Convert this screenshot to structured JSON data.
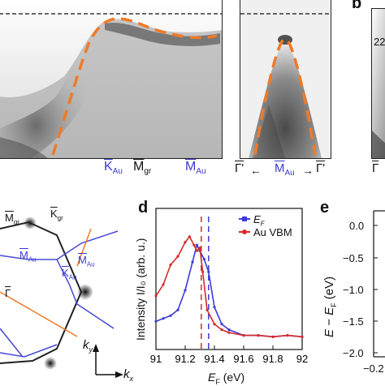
{
  "colors": {
    "fit_curve": "#f07a28",
    "blue": "#3b3bd6",
    "red": "#d62a2a",
    "bz_line": "#4848d8",
    "orange_line": "#f07a28"
  },
  "panel_a": {
    "axis_labels": [
      {
        "sym": "K",
        "sub": "Au",
        "color": "blue"
      },
      {
        "sym": "M",
        "sub": "gr",
        "color": "black"
      },
      {
        "sym": "M",
        "sub": "Au",
        "color": "blue"
      }
    ]
  },
  "panel_a2": {
    "left": "Γ'",
    "mid_sym": "M",
    "mid_sub": "Au",
    "right": "Γ'"
  },
  "panel_b": {
    "label": "b",
    "tick": "22",
    "bottom": "Γ"
  },
  "panel_c": {
    "labels": {
      "m_gr": "M",
      "m_gr_sub": "gr",
      "k_gr": "K",
      "k_gr_sub": "gr",
      "m_au_left": "M",
      "m_au_left_sub": "Au",
      "m_au_right": "M",
      "m_au_right_sub": "Au",
      "k_au": "K",
      "k_au_sub": "Au",
      "gamma": "Γ",
      "ky": "k",
      "ky_sub": "y",
      "kx": "k",
      "kx_sub": "x"
    }
  },
  "panel_d": {
    "label": "d",
    "legend": [
      {
        "name": "E",
        "sub": "F",
        "color": "blue"
      },
      {
        "name": "Au VBM",
        "color": "red"
      }
    ],
    "ylabel": "Intensity I/I₀ (arb. u.)",
    "xlabel_main": "E",
    "xlabel_sub": "F",
    "xlabel_unit": " (eV)",
    "x_ticks": [
      "91",
      "91.2",
      "91.4",
      "91.6",
      "91.8",
      "92"
    ]
  },
  "panel_e": {
    "label": "e",
    "ylabel": "E − E",
    "ylabel_sub": "F",
    "ylabel_unit": " (eV)",
    "y_ticks": [
      "0.0",
      "−0.5",
      "−1.0",
      "−1.5",
      "−2.0"
    ],
    "x_tick": "−0.2"
  },
  "chart_data": {
    "type": "line",
    "xlabel": "E_F (eV)",
    "ylabel": "Intensity I/I₀ (arb. u.)",
    "xlim": [
      91,
      92
    ],
    "series": [
      {
        "name": "E_F",
        "x": [
          91.0,
          91.05,
          91.1,
          91.15,
          91.2,
          91.25,
          91.28,
          91.3,
          91.33,
          91.36,
          91.4,
          91.45,
          91.5,
          91.6,
          91.7,
          91.8,
          91.9,
          92.0
        ],
        "values": [
          0.2,
          0.22,
          0.24,
          0.28,
          0.42,
          0.62,
          0.74,
          0.7,
          0.64,
          0.55,
          0.3,
          0.18,
          0.14,
          0.1,
          0.1,
          0.09,
          0.1,
          0.09
        ]
      },
      {
        "name": "Au VBM",
        "x": [
          91.0,
          91.05,
          91.1,
          91.15,
          91.2,
          91.23,
          91.26,
          91.28,
          91.3,
          91.32,
          91.35,
          91.4,
          91.45,
          91.5,
          91.6,
          91.7,
          91.8,
          91.9,
          92.0
        ],
        "values": [
          0.38,
          0.46,
          0.6,
          0.66,
          0.76,
          0.8,
          0.74,
          0.7,
          0.72,
          0.55,
          0.28,
          0.18,
          0.14,
          0.12,
          0.1,
          0.1,
          0.09,
          0.1,
          0.09
        ]
      }
    ],
    "vlines": [
      {
        "x": 91.31,
        "color": "red"
      },
      {
        "x": 91.36,
        "color": "blue"
      }
    ]
  }
}
